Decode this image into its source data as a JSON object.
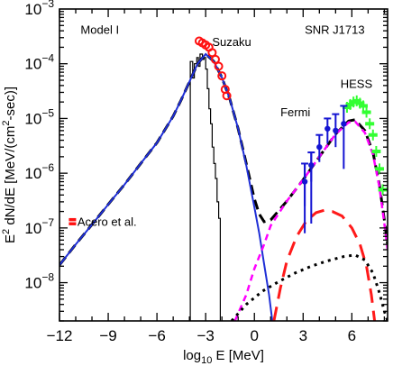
{
  "chart_data": {
    "type": "line",
    "x_scale": "linear",
    "y_scale": "log",
    "xlim": [
      -12,
      8.2
    ],
    "ylim": [
      2e-09,
      0.001
    ],
    "xlabel": "log",
    "xlabel_sub": "10",
    "xlabel_unit": " E [MeV]",
    "ylabel_parts": {
      "a": "E",
      "a_sup": "2",
      "b": " dN/dE [MeV/(cm",
      "b_sup": "2",
      "c": "-sec)]"
    },
    "x_ticks": [
      {
        "v": -12,
        "label": "−12"
      },
      {
        "v": -9,
        "label": "−9"
      },
      {
        "v": -6,
        "label": "−6"
      },
      {
        "v": -3,
        "label": "−3"
      },
      {
        "v": 0,
        "label": "0"
      },
      {
        "v": 3,
        "label": "3"
      },
      {
        "v": 6,
        "label": "6"
      }
    ],
    "y_ticks": [
      {
        "v": 0.001,
        "base": "10",
        "exp": "−3"
      },
      {
        "v": 0.0001,
        "base": "10",
        "exp": "−4"
      },
      {
        "v": 1e-05,
        "base": "10",
        "exp": "−5"
      },
      {
        "v": 1e-06,
        "base": "10",
        "exp": "−6"
      },
      {
        "v": 1e-07,
        "base": "10",
        "exp": "−7"
      },
      {
        "v": 1e-08,
        "base": "10",
        "exp": "−8"
      }
    ],
    "annotations": [
      {
        "text": "Model I",
        "x": -10.7,
        "y": 0.00035
      },
      {
        "text": "SNR J1713",
        "x": 3.1,
        "y": 0.00035
      },
      {
        "text": "Suzaku",
        "x": -2.6,
        "y": 0.00021
      },
      {
        "text": "HESS",
        "x": 5.3,
        "y": 3.6e-05
      },
      {
        "text": "Fermi",
        "x": 1.6,
        "y": 1.1e-05
      },
      {
        "text": "Acero et al.",
        "x": -10.9,
        "y": 1.1e-07
      }
    ],
    "series": [
      {
        "style": "total",
        "color": "#000000",
        "dash": "11,6",
        "width": 3,
        "points": [
          [
            -12,
            2.1e-08
          ],
          [
            -11,
            5e-08
          ],
          [
            -10,
            1.15e-07
          ],
          [
            -9,
            2.7e-07
          ],
          [
            -8,
            6.2e-07
          ],
          [
            -7,
            1.5e-06
          ],
          [
            -6,
            3.6e-06
          ],
          [
            -5,
            1.1e-05
          ],
          [
            -4.5,
            2.2e-05
          ],
          [
            -4,
            4.7e-05
          ],
          [
            -3.5,
            0.0001
          ],
          [
            -3,
            0.00015
          ],
          [
            -2.5,
            0.00011
          ],
          [
            -2,
            5.6e-05
          ],
          [
            -1.5,
            2.2e-05
          ],
          [
            -1,
            6.5e-06
          ],
          [
            -0.5,
            1.5e-06
          ],
          [
            0,
            3.4e-07
          ],
          [
            0.3,
            1.8e-07
          ],
          [
            0.6,
            1.3e-07
          ],
          [
            1,
            1.4e-07
          ],
          [
            2,
            3.1e-07
          ],
          [
            3,
            7.6e-07
          ],
          [
            4,
            2e-06
          ],
          [
            5,
            5.2e-06
          ],
          [
            5.8,
            9e-06
          ],
          [
            6.2,
            9.5e-06
          ],
          [
            6.8,
            6e-06
          ],
          [
            7.3,
            2.4e-06
          ],
          [
            7.7,
            6e-07
          ],
          [
            8,
            1.4e-07
          ],
          [
            8.2,
            5e-08
          ]
        ]
      },
      {
        "style": "synchrotron",
        "color": "#1f2fd6",
        "dash": "",
        "width": 2,
        "points": [
          [
            -12,
            2.1e-08
          ],
          [
            -11,
            5e-08
          ],
          [
            -10,
            1.15e-07
          ],
          [
            -9,
            2.7e-07
          ],
          [
            -8,
            6.2e-07
          ],
          [
            -7,
            1.5e-06
          ],
          [
            -6,
            3.6e-06
          ],
          [
            -5,
            1.1e-05
          ],
          [
            -4.5,
            2.2e-05
          ],
          [
            -4,
            4.7e-05
          ],
          [
            -3.5,
            0.0001
          ],
          [
            -3,
            0.00015
          ],
          [
            -2.5,
            0.00011
          ],
          [
            -2,
            5.6e-05
          ],
          [
            -1.5,
            2.2e-05
          ],
          [
            -1,
            6.5e-06
          ],
          [
            -0.5,
            1.4e-06
          ],
          [
            0,
            2.4e-07
          ],
          [
            0.3,
            8e-08
          ],
          [
            0.6,
            2.2e-08
          ],
          [
            0.9,
            6e-09
          ],
          [
            1.1,
            2e-09
          ]
        ]
      },
      {
        "style": "inverse-compton",
        "color": "#ff00ff",
        "dash": "7,5",
        "width": 2.5,
        "points": [
          [
            -1.2,
            2e-09
          ],
          [
            -0.5,
            6e-09
          ],
          [
            0,
            1.8e-08
          ],
          [
            0.6,
            5e-08
          ],
          [
            1,
            1.1e-07
          ],
          [
            2,
            3.1e-07
          ],
          [
            3,
            7.6e-07
          ],
          [
            4,
            2e-06
          ],
          [
            5,
            5.2e-06
          ],
          [
            5.8,
            8.5e-06
          ],
          [
            6.2,
            8.8e-06
          ],
          [
            6.8,
            5.5e-06
          ],
          [
            7.3,
            2.2e-06
          ],
          [
            7.7,
            5.5e-07
          ],
          [
            8,
            1.2e-07
          ],
          [
            8.2,
            4e-08
          ]
        ]
      },
      {
        "style": "pion-decay",
        "color": "#ff1a1a",
        "dash": "16,9",
        "width": 3,
        "points": [
          [
            1.2,
            2e-09
          ],
          [
            1.6,
            8e-09
          ],
          [
            2,
            2.5e-08
          ],
          [
            2.6,
            7e-08
          ],
          [
            3.2,
            1.35e-07
          ],
          [
            3.8,
            1.9e-07
          ],
          [
            4.3,
            2.1e-07
          ],
          [
            4.8,
            2e-07
          ],
          [
            5.4,
            1.65e-07
          ],
          [
            6,
            1e-07
          ],
          [
            6.5,
            5e-08
          ],
          [
            6.9,
            2e-08
          ],
          [
            7.2,
            6e-09
          ],
          [
            7.4,
            2e-09
          ]
        ]
      },
      {
        "style": "bremsstrahlung",
        "color": "#000000",
        "dash": "3,5",
        "width": 3,
        "points": [
          [
            -1.4,
            2e-09
          ],
          [
            -0.5,
            4e-09
          ],
          [
            0.5,
            7e-09
          ],
          [
            1.5,
            1.05e-08
          ],
          [
            2.5,
            1.5e-08
          ],
          [
            3.5,
            2e-08
          ],
          [
            4.5,
            2.5e-08
          ],
          [
            5.5,
            3e-08
          ],
          [
            6.2,
            3.2e-08
          ],
          [
            6.8,
            2.6e-08
          ],
          [
            7.3,
            1.5e-08
          ],
          [
            7.7,
            6.5e-09
          ],
          [
            8,
            3e-09
          ],
          [
            8.2,
            2e-09
          ]
        ]
      }
    ],
    "thermal_steps": [
      [
        -3.95,
        0.00011
      ],
      [
        -3.8,
        5.5e-05
      ],
      [
        -3.7,
        0.0001
      ],
      [
        -3.55,
        0.00013
      ],
      [
        -3.45,
        9e-05
      ],
      [
        -3.35,
        0.00015
      ],
      [
        -3.2,
        0.00012
      ],
      [
        -3.1,
        0.00013
      ],
      [
        -3,
        8e-05
      ],
      [
        -2.9,
        3.5e-05
      ],
      [
        -2.8,
        1.5e-05
      ],
      [
        -2.7,
        8e-06
      ],
      [
        -2.6,
        3e-06
      ],
      [
        -2.5,
        1.5e-06
      ],
      [
        -2.4,
        8e-07
      ],
      [
        -2.3,
        3e-07
      ],
      [
        -2.2,
        1.5e-07
      ]
    ],
    "data_points": {
      "suzaku": {
        "color": "#ff1010",
        "points": [
          [
            -3.4,
            0.00026
          ],
          [
            -3.2,
            0.00024
          ],
          [
            -3,
            0.00022
          ],
          [
            -2.8,
            0.0002
          ],
          [
            -2.6,
            0.00016
          ],
          [
            -2.4,
            0.00012
          ],
          [
            -2.2,
            9e-05
          ],
          [
            -2,
            6e-05
          ],
          [
            -1.8,
            3.4e-05
          ],
          [
            -1.7,
            2.6e-05
          ]
        ]
      },
      "fermi": {
        "color": "#1414d2",
        "points": [
          [
            3.1,
            7e-07,
            2.5e-07,
            1.5e-06
          ],
          [
            3.5,
            1.4e-06,
            7e-07,
            2.4e-06
          ],
          [
            4,
            3e-06,
            1.6e-06,
            5e-06
          ],
          [
            4.5,
            6.5e-06,
            3.5e-06,
            1e-05
          ],
          [
            5,
            6e-06,
            3e-06,
            1.2e-05
          ],
          [
            5.5,
            8e-06,
            1.2e-06,
            1.7e-05
          ]
        ]
      },
      "fermi_ul": [
        [
          3.1,
          1.5e-06,
          8e-08
        ],
        [
          3.5,
          2.4e-06,
          1.2e-07
        ]
      ],
      "hess": {
        "color": "#33ff33",
        "points": [
          [
            5.7,
            1.6e-05
          ],
          [
            5.9,
            1.8e-05
          ],
          [
            6.1,
            2e-05
          ],
          [
            6.3,
            2.1e-05
          ],
          [
            6.5,
            1.9e-05
          ],
          [
            6.7,
            1.7e-05
          ],
          [
            6.9,
            1.3e-05
          ],
          [
            7.1,
            8e-06
          ],
          [
            7.3,
            5e-06
          ],
          [
            7.5,
            2.5e-06
          ],
          [
            7.7,
            1.2e-06
          ],
          [
            7.9,
            5e-07
          ]
        ]
      },
      "acero": {
        "color": "#ff1010",
        "points": [
          [
            -11.2,
            1.3e-07
          ]
        ]
      }
    }
  }
}
